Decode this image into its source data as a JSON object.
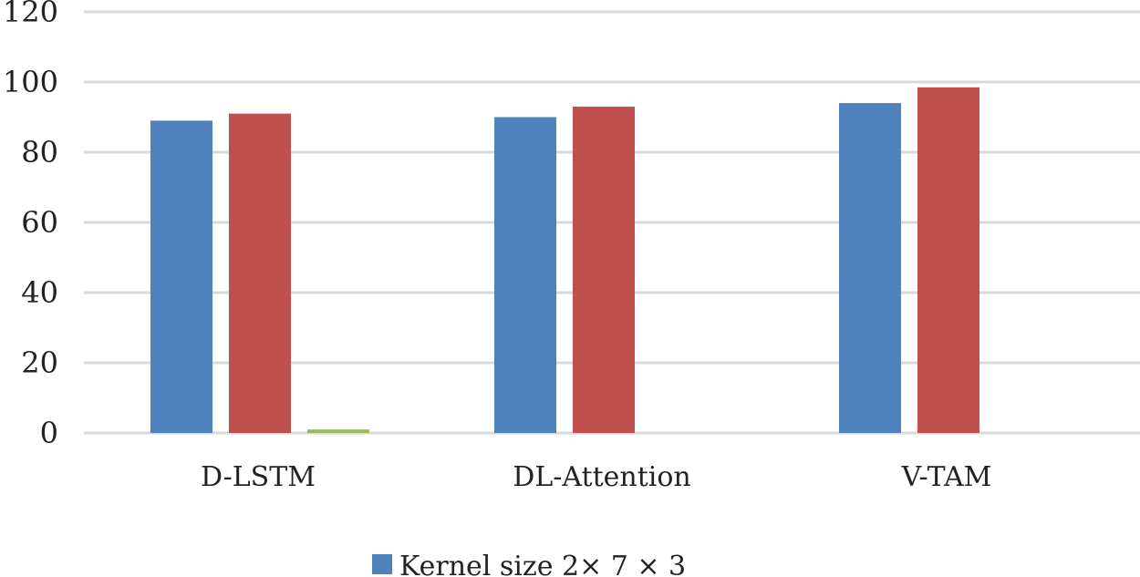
{
  "chart_data": {
    "type": "bar",
    "categories": [
      "D-LSTM",
      "DL-Attention",
      "V-TAM"
    ],
    "series": [
      {
        "name": "Kernel size 2× 7 × 3",
        "values": [
          89,
          90,
          94
        ],
        "color": "#4f81bd",
        "legend": true
      },
      {
        "values": [
          91,
          93,
          98.5
        ],
        "color": "#c0504d",
        "legend": false
      },
      {
        "values": [
          1,
          0,
          0
        ],
        "color": "#9bbb59",
        "legend": false
      }
    ],
    "y_ticks": [
      "0",
      "20",
      "40",
      "60",
      "80",
      "100",
      "120"
    ],
    "ylim": [
      0,
      120
    ],
    "grid": true,
    "legend_position": "bottom"
  }
}
